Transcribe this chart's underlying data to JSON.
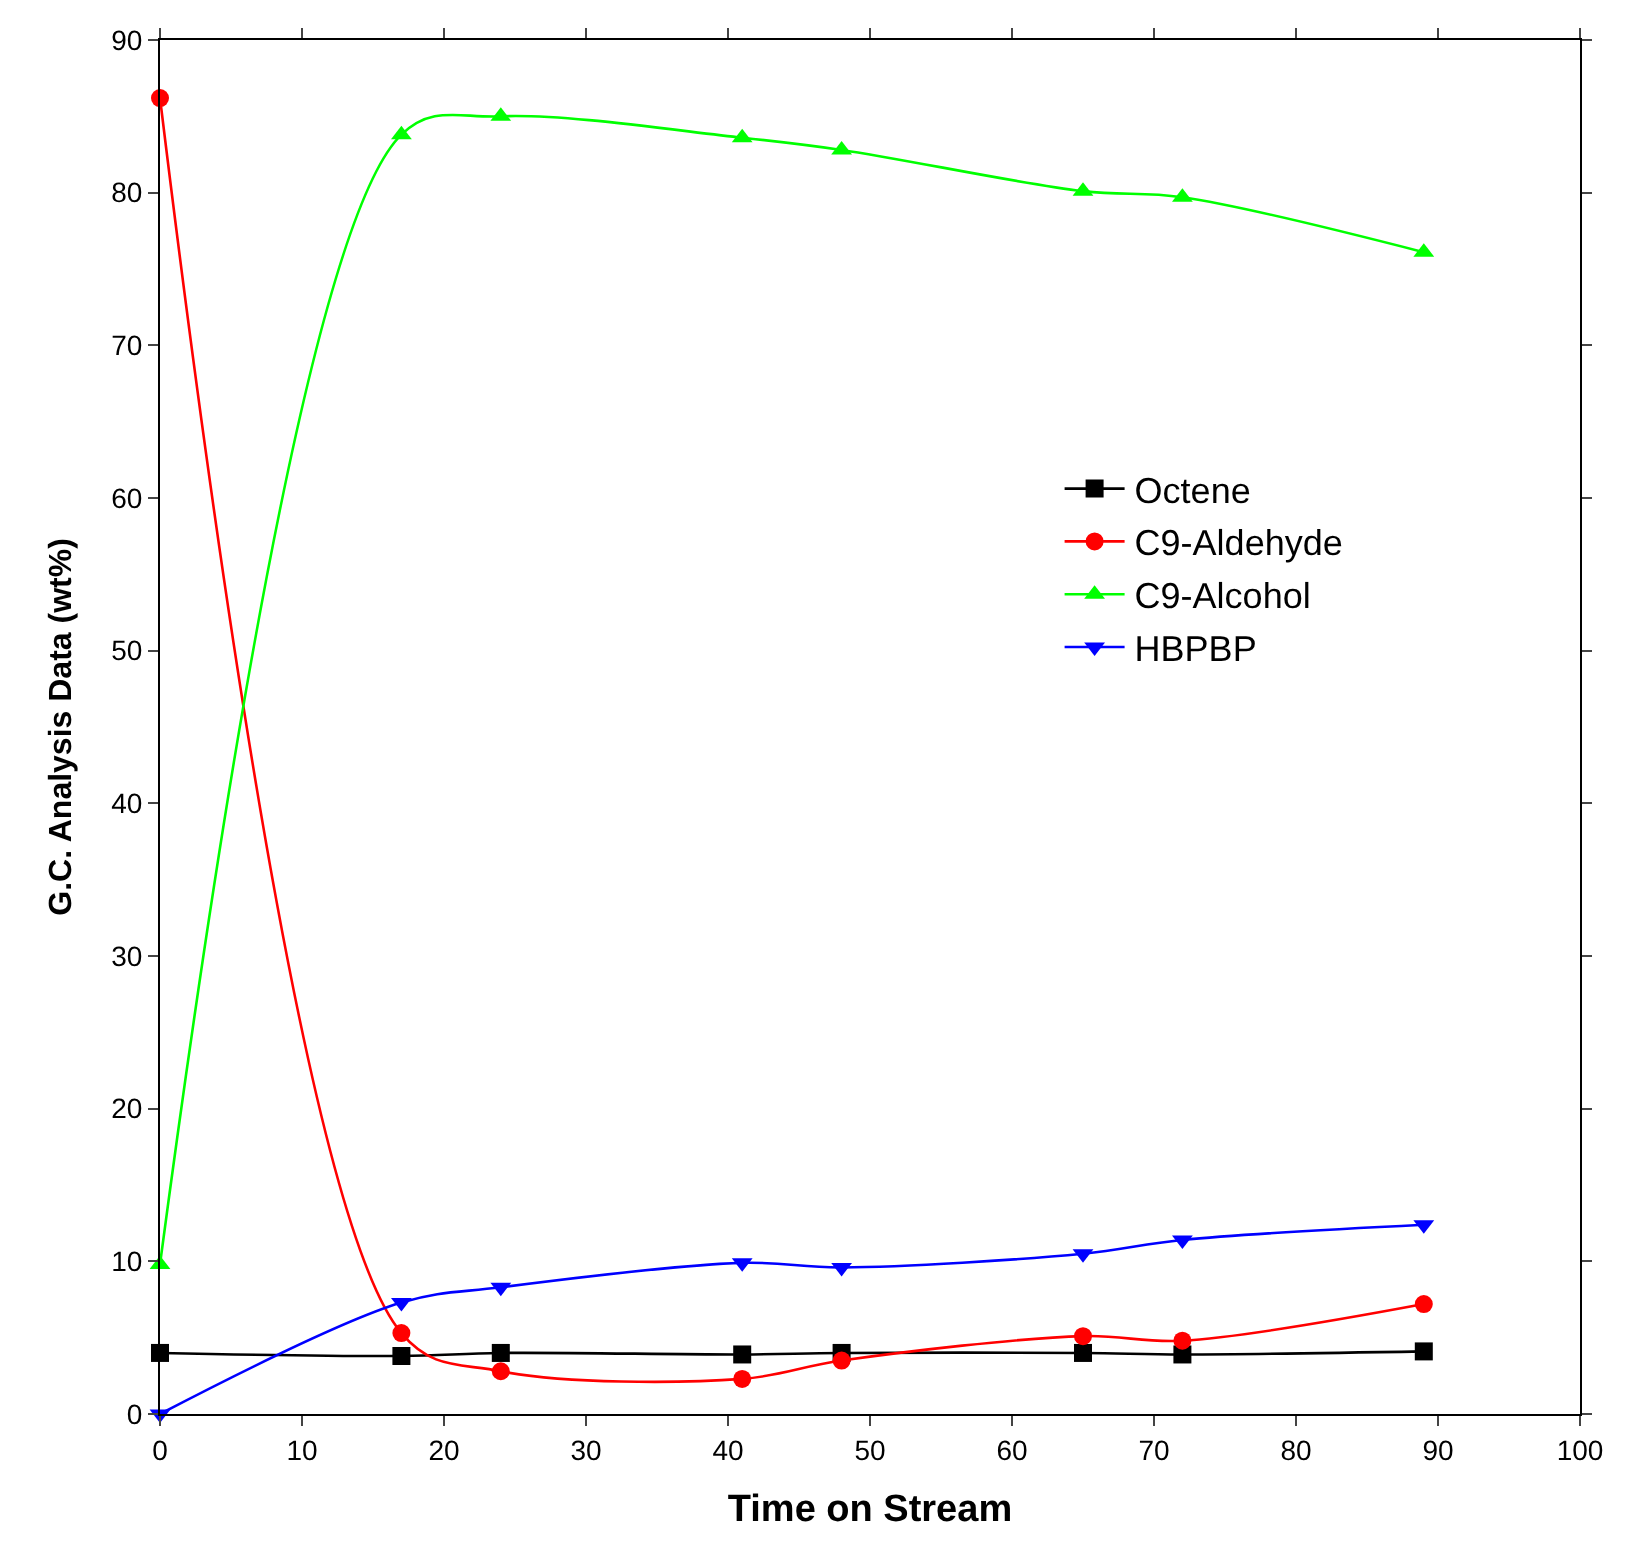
{
  "chart_data": {
    "type": "line",
    "xlabel": "Time on Stream",
    "ylabel": "G.C. Analysis Data (wt%)",
    "x": [
      0,
      17,
      24,
      41,
      48,
      65,
      72,
      89
    ],
    "series": [
      {
        "name": "Octene",
        "color": "#000000",
        "marker": "square",
        "values": [
          4.0,
          3.8,
          4.0,
          3.9,
          4.0,
          4.0,
          3.9,
          4.1
        ]
      },
      {
        "name": "C9-Aldehyde",
        "color": "#ff0000",
        "marker": "circle",
        "values": [
          86.2,
          5.3,
          2.8,
          2.3,
          3.5,
          5.1,
          4.8,
          7.2
        ]
      },
      {
        "name": "C9-Alcohol",
        "color": "#00ff00",
        "marker": "triangle",
        "values": [
          9.8,
          83.8,
          85.0,
          83.6,
          82.8,
          80.1,
          79.7,
          76.1
        ]
      },
      {
        "name": "HBPBP",
        "color": "#0000ff",
        "marker": "triangle-down",
        "values": [
          0,
          7.3,
          8.3,
          9.9,
          9.6,
          10.5,
          11.4,
          12.4
        ]
      }
    ],
    "xlim": [
      0,
      100
    ],
    "xticks": [
      0,
      10,
      20,
      30,
      40,
      50,
      60,
      70,
      80,
      90,
      100
    ],
    "ylim": [
      0,
      90
    ],
    "yticks": [
      0,
      10,
      20,
      30,
      40,
      50,
      60,
      70,
      80,
      90
    ],
    "legend": "right",
    "line_style": "solid"
  }
}
